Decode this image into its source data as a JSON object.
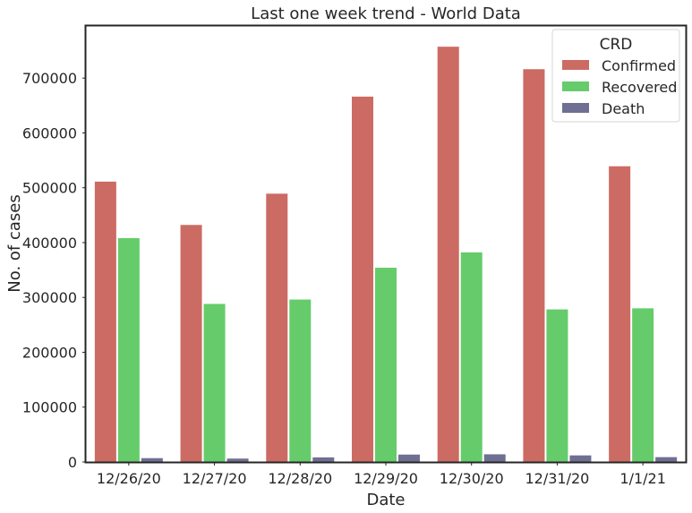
{
  "chart_data": {
    "type": "bar",
    "title": "Last one week trend - World Data",
    "xlabel": "Date",
    "ylabel": "No. of cases",
    "ylim": [
      0,
      795000
    ],
    "yticks": [
      0,
      100000,
      200000,
      300000,
      400000,
      500000,
      600000,
      700000
    ],
    "categories": [
      "12/26/20",
      "12/27/20",
      "12/28/20",
      "12/29/20",
      "12/30/20",
      "12/31/20",
      "1/1/21"
    ],
    "series": [
      {
        "name": "Confirmed",
        "color": "#cc6b63",
        "values": [
          512000,
          433000,
          490000,
          667000,
          758000,
          717000,
          540000
        ]
      },
      {
        "name": "Recovered",
        "color": "#66cc6b",
        "values": [
          409000,
          289000,
          297000,
          355000,
          383000,
          279000,
          281000
        ]
      },
      {
        "name": "Death",
        "color": "#6f6f94",
        "values": [
          7800,
          7000,
          9200,
          14300,
          14800,
          12800,
          9600
        ]
      }
    ],
    "legend": {
      "title": "CRD",
      "placement": "top-right"
    },
    "grid": false
  }
}
